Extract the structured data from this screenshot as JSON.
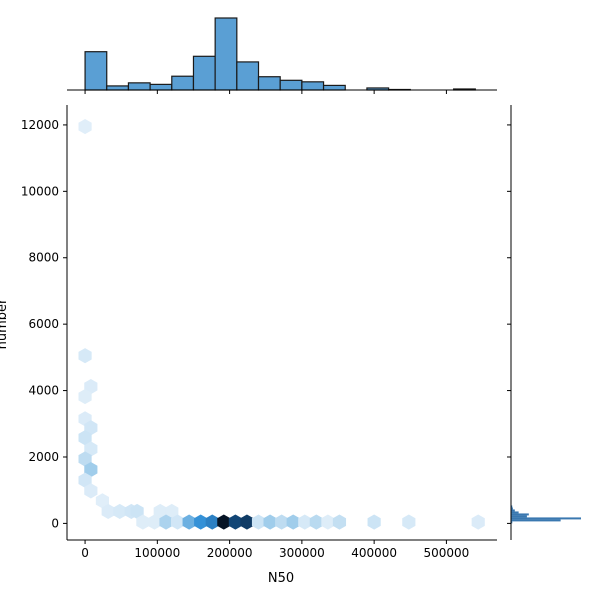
{
  "chart_data": {
    "type": "jointplot-hexbin",
    "xlabel": "N50",
    "ylabel": "number",
    "xlim": [
      -25000,
      570000
    ],
    "ylim": [
      -500,
      12600
    ],
    "xticks": [
      0,
      100000,
      200000,
      300000,
      400000,
      500000
    ],
    "yticks": [
      0,
      2000,
      4000,
      6000,
      8000,
      10000,
      12000
    ],
    "colors": {
      "bar": "#5a9fd4",
      "barStroke": "#1a1a1a",
      "hexLight": "#eaf3fb",
      "hexDark": "#061425",
      "marginal_right": "#3a78b0"
    },
    "x_histogram": {
      "bin_edges": [
        0,
        30000,
        60000,
        90000,
        120000,
        150000,
        180000,
        210000,
        240000,
        270000,
        300000,
        330000,
        360000,
        390000,
        420000,
        450000,
        480000,
        510000,
        540000,
        570000
      ],
      "counts": [
        75,
        8,
        14,
        11,
        27,
        66,
        141,
        55,
        26,
        19,
        16,
        9,
        0,
        4,
        1,
        0,
        0,
        2,
        0
      ]
    },
    "hexbins": [
      {
        "x": 0,
        "y": 11950,
        "v": 0.04
      },
      {
        "x": 0,
        "y": 5050,
        "v": 0.08
      },
      {
        "x": 8000,
        "y": 4120,
        "v": 0.06
      },
      {
        "x": 0,
        "y": 3820,
        "v": 0.05
      },
      {
        "x": 0,
        "y": 3150,
        "v": 0.06
      },
      {
        "x": 8000,
        "y": 2880,
        "v": 0.1
      },
      {
        "x": 0,
        "y": 2580,
        "v": 0.12
      },
      {
        "x": 8000,
        "y": 2240,
        "v": 0.08
      },
      {
        "x": 0,
        "y": 1940,
        "v": 0.18
      },
      {
        "x": 8000,
        "y": 1620,
        "v": 0.3
      },
      {
        "x": 0,
        "y": 1300,
        "v": 0.1
      },
      {
        "x": 8000,
        "y": 980,
        "v": 0.06
      },
      {
        "x": 24000,
        "y": 680,
        "v": 0.04
      },
      {
        "x": 32000,
        "y": 360,
        "v": 0.06
      },
      {
        "x": 48000,
        "y": 360,
        "v": 0.08
      },
      {
        "x": 64000,
        "y": 360,
        "v": 0.1
      },
      {
        "x": 72000,
        "y": 360,
        "v": 0.12
      },
      {
        "x": 104000,
        "y": 360,
        "v": 0.05
      },
      {
        "x": 120000,
        "y": 360,
        "v": 0.05
      },
      {
        "x": 80000,
        "y": 40,
        "v": 0.05
      },
      {
        "x": 96000,
        "y": 40,
        "v": 0.05
      },
      {
        "x": 112000,
        "y": 40,
        "v": 0.25
      },
      {
        "x": 128000,
        "y": 40,
        "v": 0.1
      },
      {
        "x": 144000,
        "y": 40,
        "v": 0.42
      },
      {
        "x": 160000,
        "y": 40,
        "v": 0.55
      },
      {
        "x": 176000,
        "y": 40,
        "v": 0.62
      },
      {
        "x": 192000,
        "y": 40,
        "v": 1.0
      },
      {
        "x": 208000,
        "y": 40,
        "v": 0.85
      },
      {
        "x": 224000,
        "y": 40,
        "v": 0.88
      },
      {
        "x": 240000,
        "y": 40,
        "v": 0.12
      },
      {
        "x": 256000,
        "y": 40,
        "v": 0.3
      },
      {
        "x": 272000,
        "y": 40,
        "v": 0.18
      },
      {
        "x": 288000,
        "y": 40,
        "v": 0.3
      },
      {
        "x": 304000,
        "y": 40,
        "v": 0.08
      },
      {
        "x": 320000,
        "y": 40,
        "v": 0.2
      },
      {
        "x": 336000,
        "y": 40,
        "v": 0.05
      },
      {
        "x": 352000,
        "y": 40,
        "v": 0.16
      },
      {
        "x": 400000,
        "y": 40,
        "v": 0.12
      },
      {
        "x": 448000,
        "y": 40,
        "v": 0.08
      },
      {
        "x": 544000,
        "y": 40,
        "v": 0.06
      }
    ],
    "y_histogram": {
      "bin_edges": [
        0,
        60,
        120,
        180,
        240,
        300,
        360,
        420,
        480,
        540
      ],
      "counts": [
        2,
        78,
        110,
        25,
        28,
        12,
        6,
        3,
        2
      ]
    }
  }
}
